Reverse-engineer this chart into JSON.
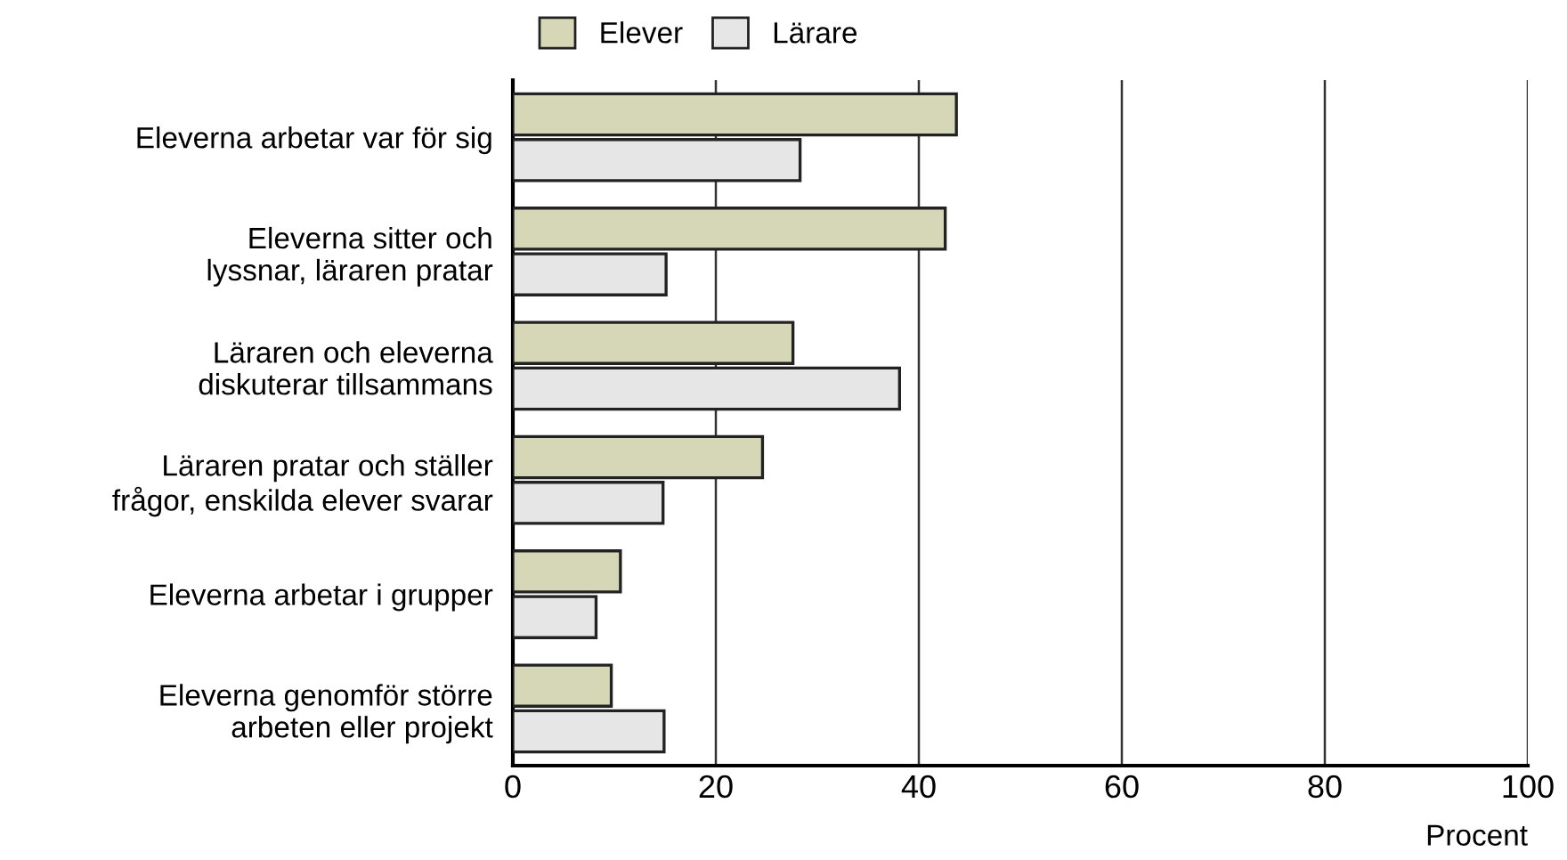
{
  "chart_data": {
    "type": "bar",
    "orientation": "horizontal",
    "categories": [
      "Eleverna arbetar var för sig",
      "Eleverna sitter och\nlyssnar, läraren pratar",
      "Läraren och eleverna\ndiskuterar tillsammans",
      "Läraren pratar och ställer\nfrågor, enskilda elever svarar",
      "Eleverna arbetar i grupper",
      "Eleverna genomför större\narbeten eller projekt"
    ],
    "series": [
      {
        "name": "Elever",
        "color": "#d5d7b7",
        "values": [
          43.7,
          42.6,
          27.6,
          24.6,
          10.6,
          9.7
        ]
      },
      {
        "name": "Lärare",
        "color": "#e6e6e6",
        "values": [
          28.3,
          15.1,
          38.1,
          14.8,
          8.2,
          14.9
        ]
      }
    ],
    "xlabel": "Procent",
    "xlim": [
      0,
      100
    ],
    "xticks": [
      0,
      20,
      40,
      60,
      80,
      100
    ],
    "grid": "x",
    "legend": "top"
  }
}
